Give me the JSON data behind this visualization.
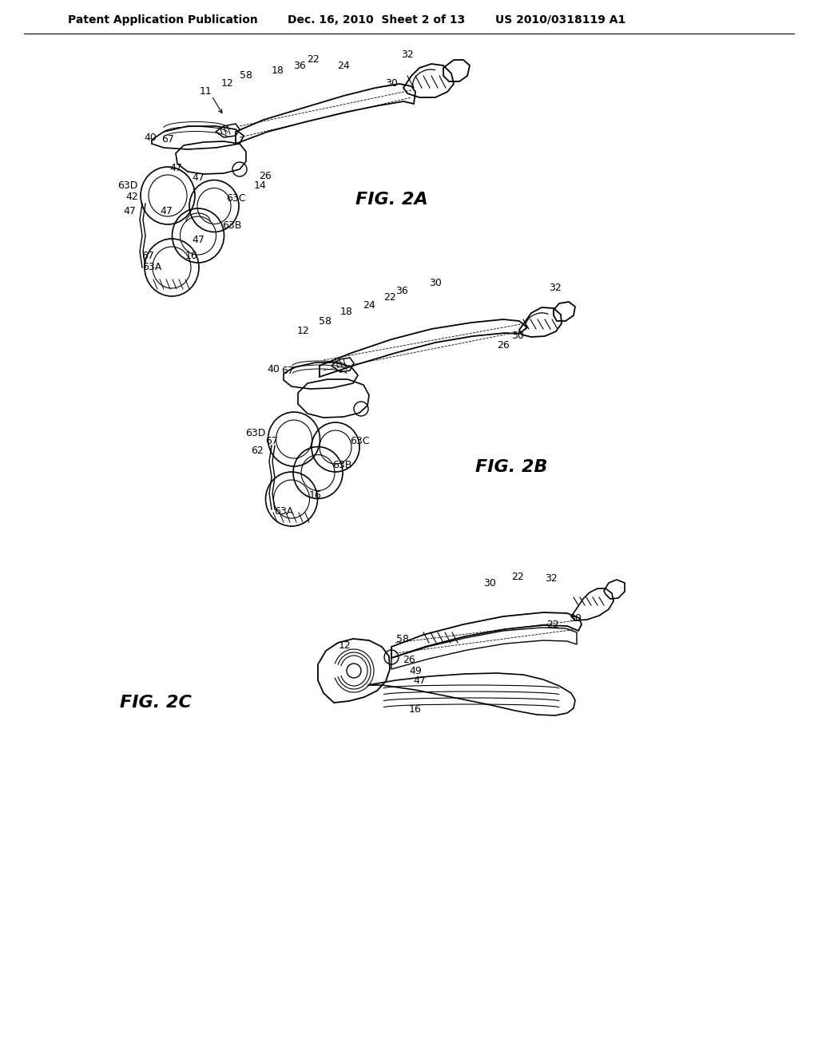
{
  "bg_color": "#ffffff",
  "header_left": "Patent Application Publication",
  "header_mid": "Dec. 16, 2010  Sheet 2 of 13",
  "header_right": "US 2010/0318119 A1",
  "header_fontsize": 10,
  "fig_label_fontsize": 16,
  "label_fontsize": 9
}
